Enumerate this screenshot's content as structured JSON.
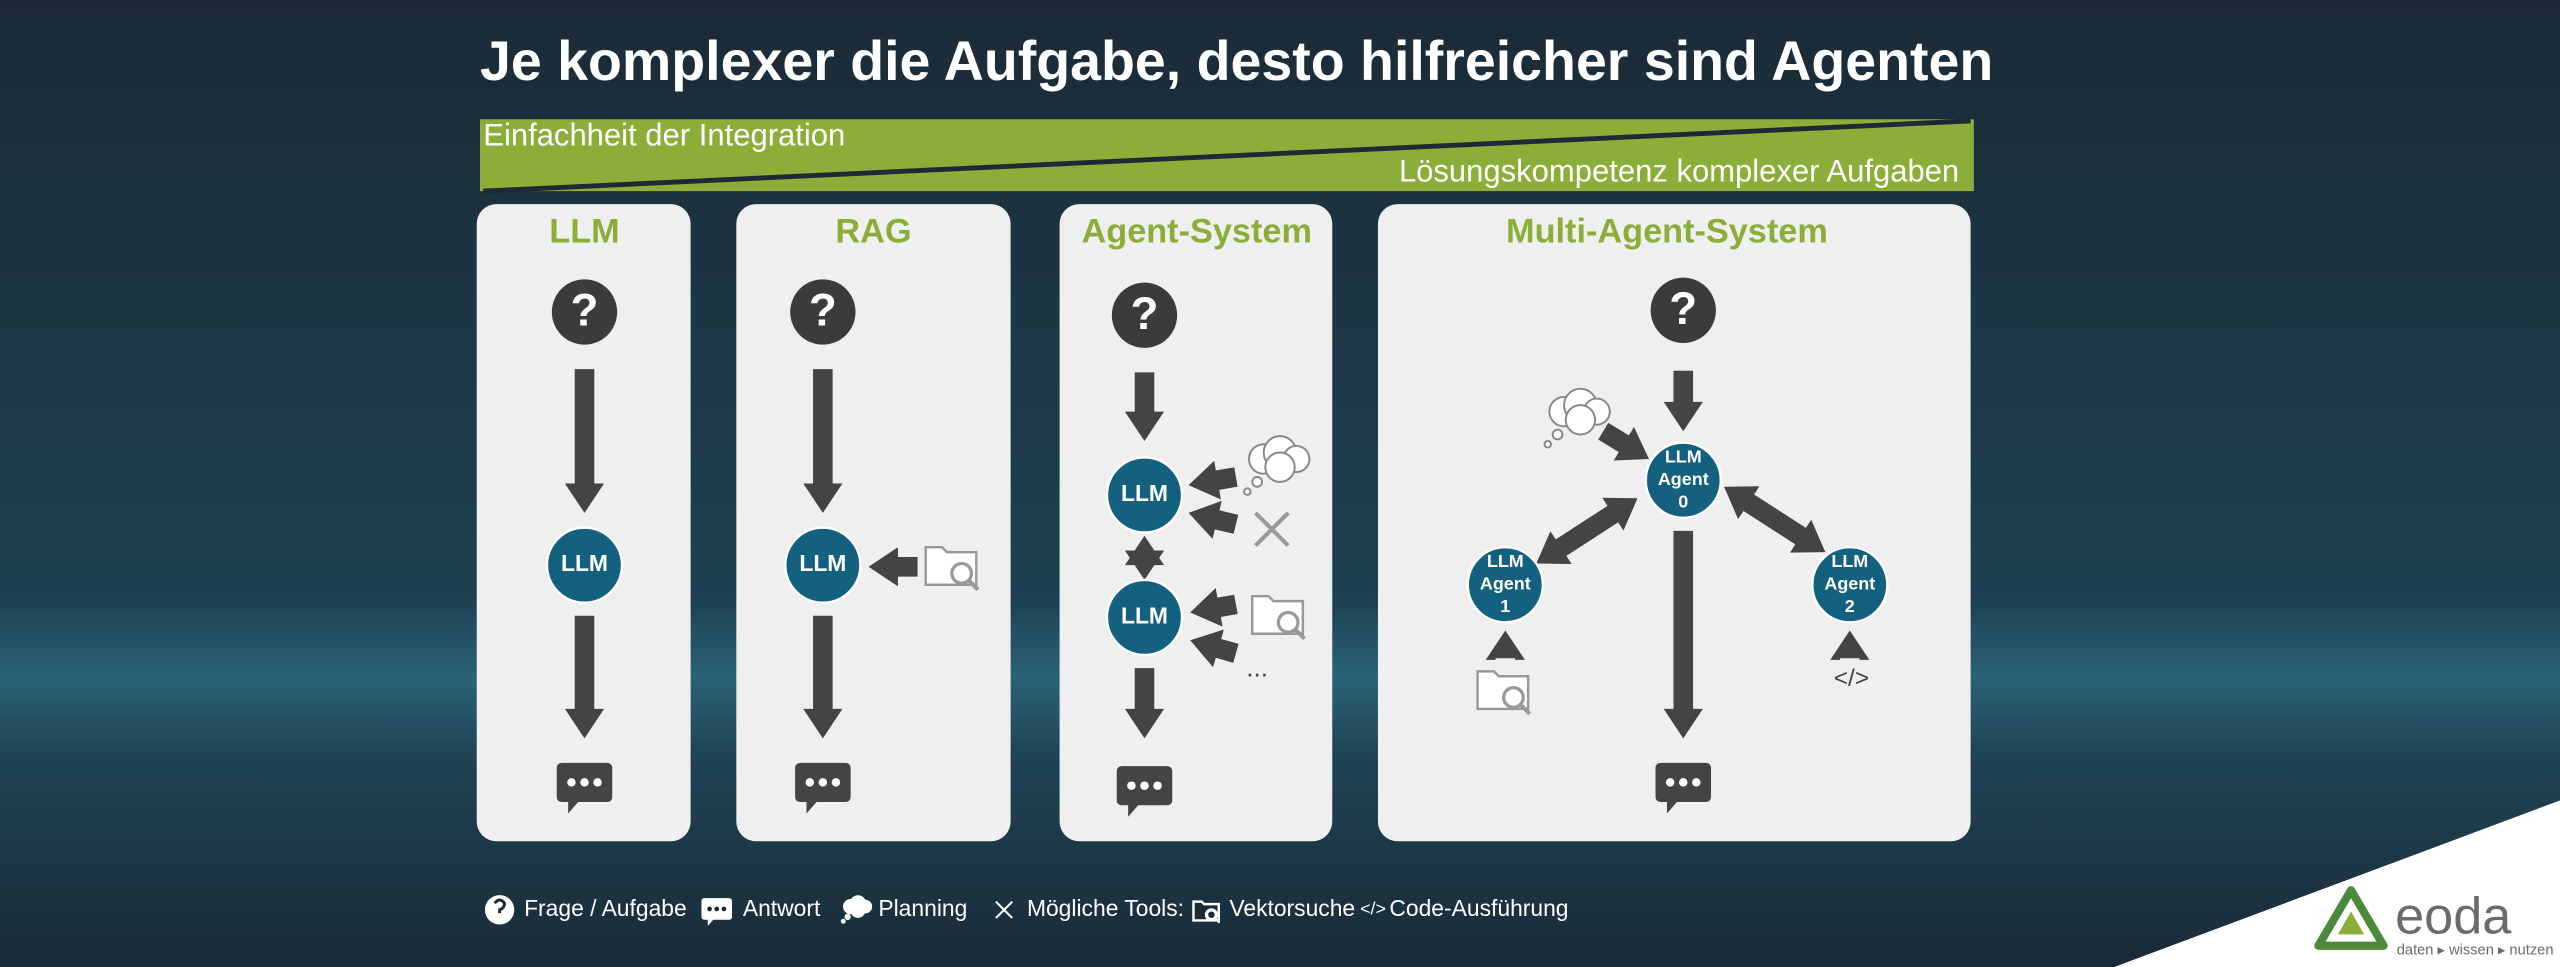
{
  "title": "Je komplexer die Aufgabe, desto hilfreicher sind Agenten",
  "banner": {
    "top": "Einfachheit der Integration",
    "bottom": "Lösungskompetenz komplexer Aufgaben"
  },
  "panels": [
    {
      "title": "LLM",
      "question": "?",
      "nodes": [
        [
          "LLM"
        ]
      ]
    },
    {
      "title": "RAG",
      "question": "?",
      "nodes": [
        [
          "LLM"
        ]
      ]
    },
    {
      "title": "Agent-System",
      "question": "?",
      "nodes": [
        [
          "LLM"
        ],
        [
          "LLM"
        ]
      ],
      "more": "..."
    },
    {
      "title": "Multi-Agent-System",
      "question": "?",
      "nodes": [
        [
          "LLM",
          "Agent",
          "0"
        ],
        [
          "LLM",
          "Agent",
          "1"
        ],
        [
          "LLM",
          "Agent",
          "2"
        ]
      ],
      "code": "</>"
    }
  ],
  "legend": {
    "question": "Frage / Aufgabe",
    "answer": "Antwort",
    "planning": "Planning",
    "tools": "Mögliche Tools:",
    "vector": "Vektorsuche",
    "code_icon": "</>",
    "code": "Code-Ausführung"
  },
  "logo": {
    "name": "eoda",
    "tagline": "daten ▸ wissen ▸ nutzen"
  }
}
